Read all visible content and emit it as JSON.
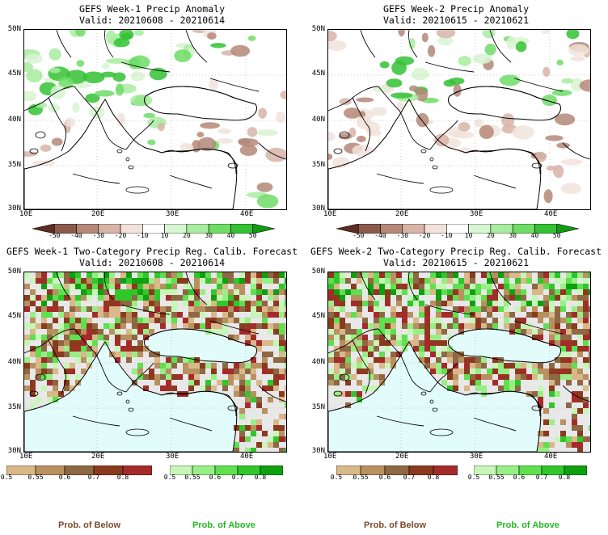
{
  "panels": [
    {
      "title": "GEFS Week-1 Precip Anomaly",
      "valid": "Valid: 20210608 - 20210614"
    },
    {
      "title": "GEFS Week-2 Precip Anomaly",
      "valid": "Valid: 20210615 - 20210621"
    },
    {
      "title": "GEFS Week-1 Two-Category Precip Reg. Calib. Forecast",
      "valid": "Valid: 20210608 - 20210614"
    },
    {
      "title": "GEFS Week-2 Two-Category Precip Reg. Calib. Forecast",
      "valid": "Valid: 20210615 - 20210621"
    }
  ],
  "lat_labels": [
    "50N",
    "45N",
    "40N",
    "35N",
    "30N"
  ],
  "lon_labels": [
    "10E",
    "20E",
    "30E",
    "40E"
  ],
  "anomaly_scale": {
    "labels": [
      "-50",
      "-40",
      "-30",
      "-20",
      "-10",
      "10",
      "20",
      "30",
      "40",
      "50"
    ],
    "colors": [
      "#5a2e24",
      "#8b5a4a",
      "#b48878",
      "#d8b4a8",
      "#f1e3dc",
      "#ffffff",
      "#d7f5d0",
      "#a8eca0",
      "#6fdc66",
      "#33c233",
      "#129a12"
    ]
  },
  "below_scale": {
    "labels": [
      "0.5",
      "0.55",
      "0.6",
      "0.7",
      "0.8"
    ],
    "colors": [
      "#d9b889",
      "#b9905f",
      "#8e6843",
      "#8b3a1e",
      "#a52a2a"
    ]
  },
  "above_scale": {
    "labels": [
      "0.5",
      "0.55",
      "0.6",
      "0.7",
      "0.8"
    ],
    "colors": [
      "#c7f7b8",
      "#98ef85",
      "#5fe04f",
      "#2fc72a",
      "#0fa00f"
    ]
  },
  "legend": {
    "below_label": "Prob. of Below",
    "above_label": "Prob. of Above",
    "below_color": "#7b4a2a",
    "above_color": "#22b822"
  },
  "colors": {
    "sea": "#e2fbfb",
    "land_na": "#e8e8e8",
    "coast": "#000000",
    "grid": "#999999"
  }
}
